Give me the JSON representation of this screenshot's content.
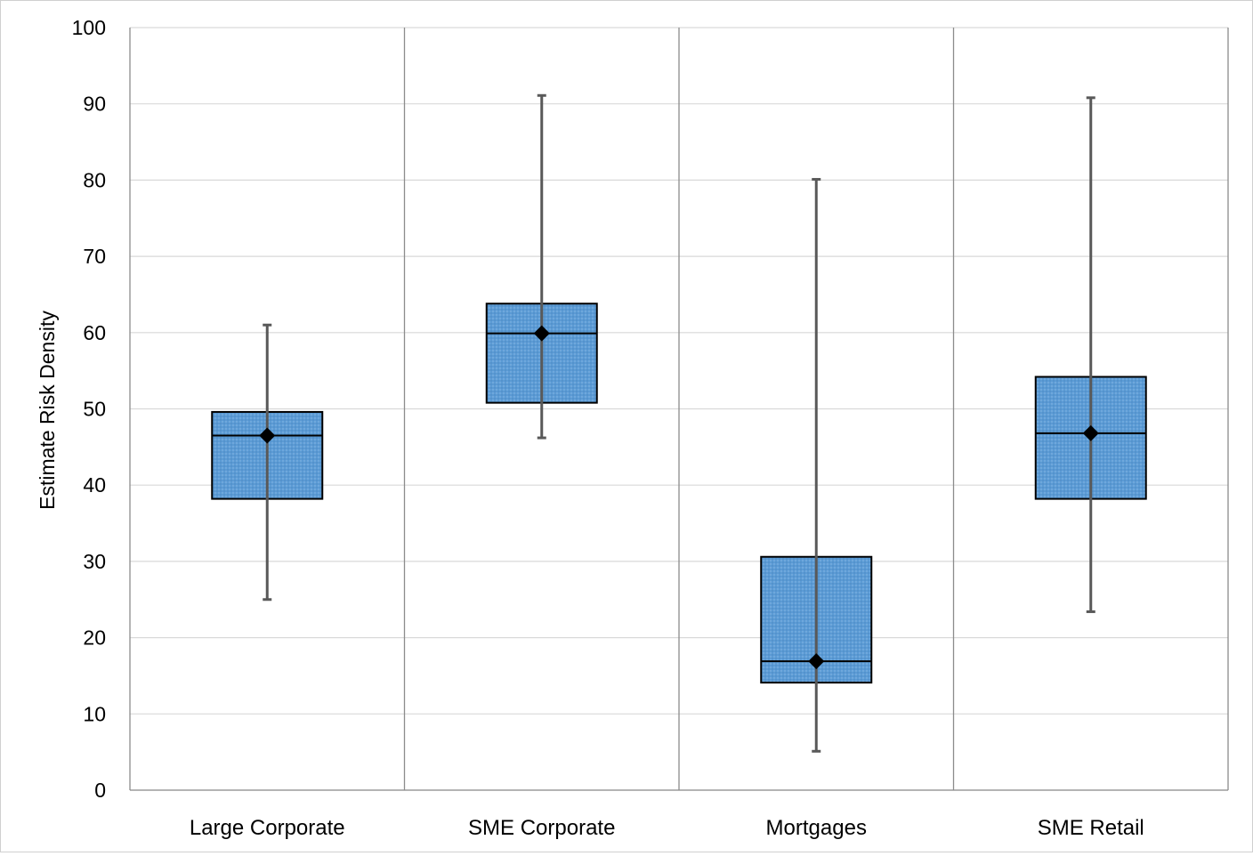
{
  "chart_data": {
    "type": "boxplot",
    "title": "",
    "xlabel": "",
    "ylabel": "Estimate Risk Density",
    "ylim": [
      0,
      100
    ],
    "yticks": [
      0,
      10,
      20,
      30,
      40,
      50,
      60,
      70,
      80,
      90,
      100
    ],
    "grid": true,
    "legend": "none",
    "box_fill": "#5b9bd5",
    "categories": [
      "Large Corporate",
      "SME Corporate",
      "Mortgages",
      "SME Retail"
    ],
    "boxes": [
      {
        "category": "Large Corporate",
        "min": 25,
        "q1": 38.2,
        "median": 46.5,
        "q3": 49.6,
        "max": 61,
        "mean": 46.5
      },
      {
        "category": "SME Corporate",
        "min": 46.2,
        "q1": 50.8,
        "median": 59.9,
        "q3": 63.8,
        "max": 91.1,
        "mean": 59.9
      },
      {
        "category": "Mortgages",
        "min": 5.1,
        "q1": 14.1,
        "median": 16.9,
        "q3": 30.6,
        "max": 80.1,
        "mean": 16.9
      },
      {
        "category": "SME Retail",
        "min": 23.4,
        "q1": 38.2,
        "median": 46.8,
        "q3": 54.2,
        "max": 90.8,
        "mean": 46.8
      }
    ]
  }
}
